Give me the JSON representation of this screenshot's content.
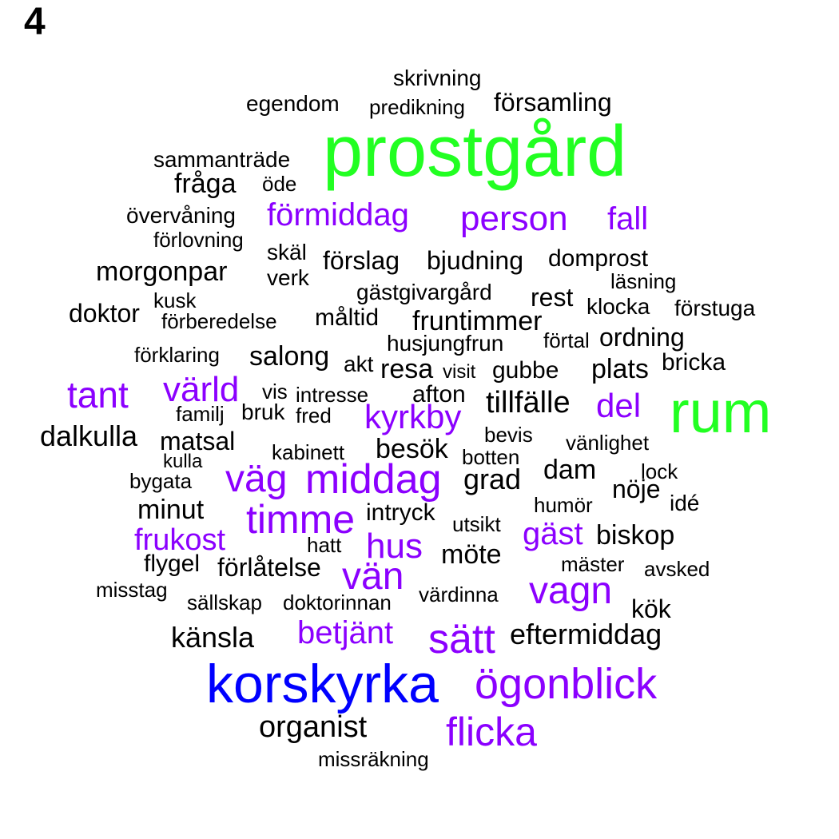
{
  "panel_label": "4",
  "colors": {
    "black": "#000000",
    "purple": "#8B00FF",
    "green": "#22FF22",
    "blue": "#0000FF"
  },
  "words": [
    {
      "text": "skrivning",
      "color": "black"
    },
    {
      "text": "egendom",
      "color": "black"
    },
    {
      "text": "predikning",
      "color": "black"
    },
    {
      "text": "församling",
      "color": "black"
    },
    {
      "text": "prostgård",
      "color": "green"
    },
    {
      "text": "sammanträde",
      "color": "black"
    },
    {
      "text": "fråga",
      "color": "black"
    },
    {
      "text": "öde",
      "color": "black"
    },
    {
      "text": "övervåning",
      "color": "black"
    },
    {
      "text": "förmiddag",
      "color": "purple"
    },
    {
      "text": "person",
      "color": "purple"
    },
    {
      "text": "fall",
      "color": "purple"
    },
    {
      "text": "förlovning",
      "color": "black"
    },
    {
      "text": "skäl",
      "color": "black"
    },
    {
      "text": "förslag",
      "color": "black"
    },
    {
      "text": "bjudning",
      "color": "black"
    },
    {
      "text": "domprost",
      "color": "black"
    },
    {
      "text": "morgonpar",
      "color": "black"
    },
    {
      "text": "verk",
      "color": "black"
    },
    {
      "text": "läsning",
      "color": "black"
    },
    {
      "text": "gästgivargård",
      "color": "black"
    },
    {
      "text": "rest",
      "color": "black"
    },
    {
      "text": "kusk",
      "color": "black"
    },
    {
      "text": "doktor",
      "color": "black"
    },
    {
      "text": "klocka",
      "color": "black"
    },
    {
      "text": "förstuga",
      "color": "black"
    },
    {
      "text": "förberedelse",
      "color": "black"
    },
    {
      "text": "måltid",
      "color": "black"
    },
    {
      "text": "fruntimmer",
      "color": "black"
    },
    {
      "text": "förtal",
      "color": "black"
    },
    {
      "text": "ordning",
      "color": "black"
    },
    {
      "text": "husjungfrun",
      "color": "black"
    },
    {
      "text": "förklaring",
      "color": "black"
    },
    {
      "text": "salong",
      "color": "black"
    },
    {
      "text": "akt",
      "color": "black"
    },
    {
      "text": "resa",
      "color": "black"
    },
    {
      "text": "visit",
      "color": "black"
    },
    {
      "text": "gubbe",
      "color": "black"
    },
    {
      "text": "plats",
      "color": "black"
    },
    {
      "text": "bricka",
      "color": "black"
    },
    {
      "text": "tant",
      "color": "purple"
    },
    {
      "text": "värld",
      "color": "purple"
    },
    {
      "text": "vis",
      "color": "black"
    },
    {
      "text": "intresse",
      "color": "black"
    },
    {
      "text": "afton",
      "color": "black"
    },
    {
      "text": "tillfälle",
      "color": "black"
    },
    {
      "text": "del",
      "color": "purple"
    },
    {
      "text": "rum",
      "color": "green"
    },
    {
      "text": "familj",
      "color": "black"
    },
    {
      "text": "bruk",
      "color": "black"
    },
    {
      "text": "fred",
      "color": "black"
    },
    {
      "text": "kyrkby",
      "color": "purple"
    },
    {
      "text": "dalkulla",
      "color": "black"
    },
    {
      "text": "matsal",
      "color": "black"
    },
    {
      "text": "bevis",
      "color": "black"
    },
    {
      "text": "kabinett",
      "color": "black"
    },
    {
      "text": "besök",
      "color": "black"
    },
    {
      "text": "vänlighet",
      "color": "black"
    },
    {
      "text": "kulla",
      "color": "black"
    },
    {
      "text": "botten",
      "color": "black"
    },
    {
      "text": "dam",
      "color": "black"
    },
    {
      "text": "lock",
      "color": "black"
    },
    {
      "text": "bygata",
      "color": "black"
    },
    {
      "text": "väg",
      "color": "purple"
    },
    {
      "text": "middag",
      "color": "purple"
    },
    {
      "text": "grad",
      "color": "black"
    },
    {
      "text": "nöje",
      "color": "black"
    },
    {
      "text": "minut",
      "color": "black"
    },
    {
      "text": "idé",
      "color": "black"
    },
    {
      "text": "humör",
      "color": "black"
    },
    {
      "text": "timme",
      "color": "purple"
    },
    {
      "text": "intryck",
      "color": "black"
    },
    {
      "text": "utsikt",
      "color": "black"
    },
    {
      "text": "frukost",
      "color": "purple"
    },
    {
      "text": "gäst",
      "color": "purple"
    },
    {
      "text": "biskop",
      "color": "black"
    },
    {
      "text": "hatt",
      "color": "black"
    },
    {
      "text": "hus",
      "color": "purple"
    },
    {
      "text": "möte",
      "color": "black"
    },
    {
      "text": "flygel",
      "color": "black"
    },
    {
      "text": "förlåtelse",
      "color": "black"
    },
    {
      "text": "mäster",
      "color": "black"
    },
    {
      "text": "avsked",
      "color": "black"
    },
    {
      "text": "vän",
      "color": "purple"
    },
    {
      "text": "misstag",
      "color": "black"
    },
    {
      "text": "vagn",
      "color": "purple"
    },
    {
      "text": "sällskap",
      "color": "black"
    },
    {
      "text": "doktorinnan",
      "color": "black"
    },
    {
      "text": "värdinna",
      "color": "black"
    },
    {
      "text": "kök",
      "color": "black"
    },
    {
      "text": "betjänt",
      "color": "purple"
    },
    {
      "text": "känsla",
      "color": "black"
    },
    {
      "text": "sätt",
      "color": "purple"
    },
    {
      "text": "eftermiddag",
      "color": "black"
    },
    {
      "text": "korskyrka",
      "color": "blue"
    },
    {
      "text": "ögonblick",
      "color": "purple"
    },
    {
      "text": "organist",
      "color": "black"
    },
    {
      "text": "flicka",
      "color": "purple"
    },
    {
      "text": "missräkning",
      "color": "black"
    }
  ]
}
